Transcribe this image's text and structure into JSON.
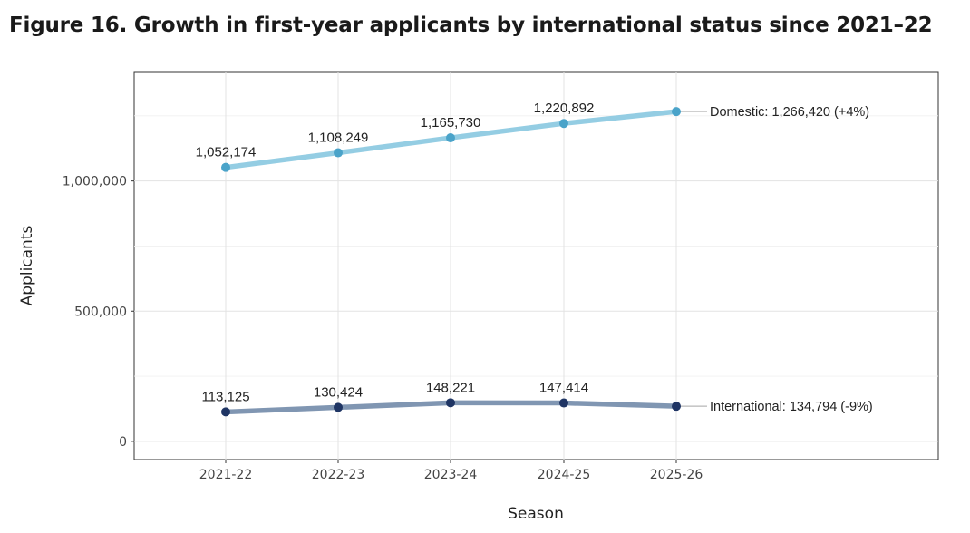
{
  "figure": {
    "title": "Figure 16. Growth in first-year applicants by international status since 2021–22"
  },
  "chart_data": {
    "type": "line",
    "title": "Figure 16. Growth in first-year applicants by international status since 2021–22",
    "xlabel": "Season",
    "ylabel": "Applicants",
    "categories": [
      "2021-22",
      "2022-23",
      "2023-24",
      "2024-25",
      "2025-26"
    ],
    "y_ticks": [
      0,
      500000,
      1000000
    ],
    "y_tick_labels": [
      "0",
      "500,000",
      "1,000,000"
    ],
    "ylim": [
      -70000,
      1420000
    ],
    "grid": true,
    "legend": "none",
    "series": [
      {
        "name": "Domestic",
        "values": [
          1052174,
          1108249,
          1165730,
          1220892,
          1266420
        ],
        "point_labels": [
          "1,052,174",
          "1,108,249",
          "1,165,730",
          "1,220,892"
        ],
        "end_label": "Domestic: 1,266,420 (+4%)",
        "line_color": "#94cde3",
        "point_color": "#4aa3c9"
      },
      {
        "name": "International",
        "values": [
          113125,
          130424,
          148221,
          147414,
          134794
        ],
        "point_labels": [
          "113,125",
          "130,424",
          "148,221",
          "147,414"
        ],
        "end_label": "International: 134,794 (-9%)",
        "line_color": "#8096b2",
        "point_color": "#1f3564"
      }
    ]
  }
}
